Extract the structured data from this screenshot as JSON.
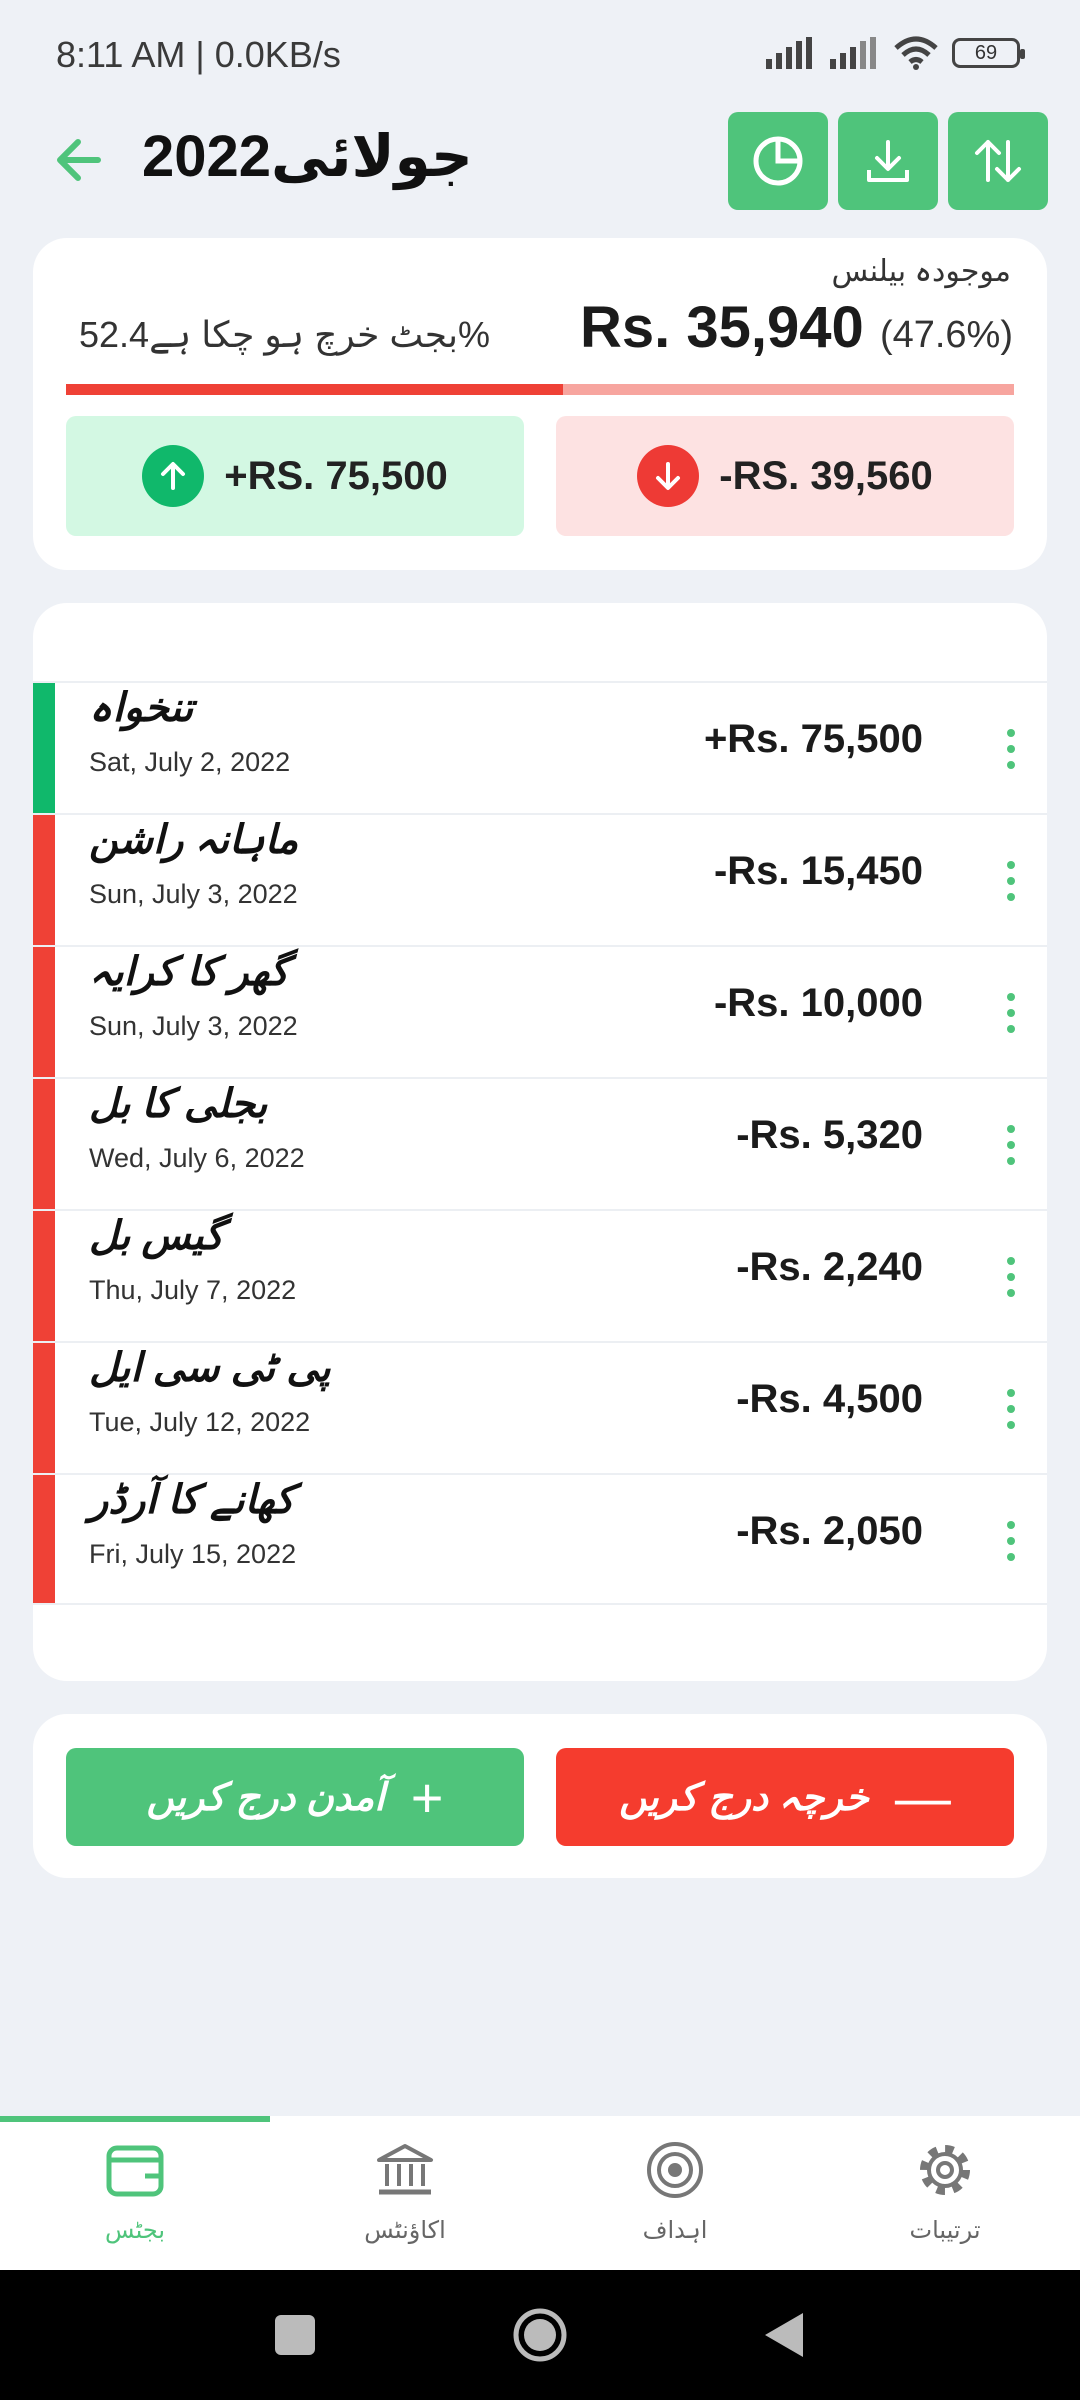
{
  "status_bar": {
    "time": "8:11 AM | 0.0KB/s",
    "battery": "69"
  },
  "header": {
    "title": "جولائی2022"
  },
  "summary": {
    "balance_label": "موجودہ بیلنس",
    "balance_amount": "Rs. 35,940",
    "balance_percent": "(47.6%)",
    "spent_text": "بجٹ خرچ ہو چکا ہے52.4%",
    "spent_fraction": 0.524,
    "income": "+RS. 75,500",
    "expense": "-RS. 39,560"
  },
  "transactions": [
    {
      "title": "تنخواہ",
      "date": "Sat, July 2, 2022",
      "amount": "+Rs. 75,500",
      "type": "income"
    },
    {
      "title": "ماہانہ راشن",
      "date": "Sun, July 3, 2022",
      "amount": "-Rs. 15,450",
      "type": "expense"
    },
    {
      "title": "گھر کا کرایہ",
      "date": "Sun, July 3, 2022",
      "amount": "-Rs. 10,000",
      "type": "expense"
    },
    {
      "title": "بجلی کا بل",
      "date": "Wed, July 6, 2022",
      "amount": "-Rs. 5,320",
      "type": "expense"
    },
    {
      "title": "گیس بل",
      "date": "Thu, July 7, 2022",
      "amount": "-Rs. 2,240",
      "type": "expense"
    },
    {
      "title": "پی ٹی سی ایل",
      "date": "Tue, July 12, 2022",
      "amount": "-Rs. 4,500",
      "type": "expense"
    },
    {
      "title": "کھانے کا آرڈر",
      "date": "Fri, July 15, 2022",
      "amount": "-Rs. 2,050",
      "type": "expense"
    }
  ],
  "actions": {
    "add_income": "آمدن درج کریں",
    "add_expense": "خرچہ درج کریں"
  },
  "nav": {
    "budget": "بجٹس",
    "accounts": "اکاؤنٹس",
    "goals": "اہداف",
    "settings": "ترتیبات"
  },
  "colors": {
    "accent": "#4fc47b",
    "income": "#10b86b",
    "expense": "#ef4136"
  }
}
